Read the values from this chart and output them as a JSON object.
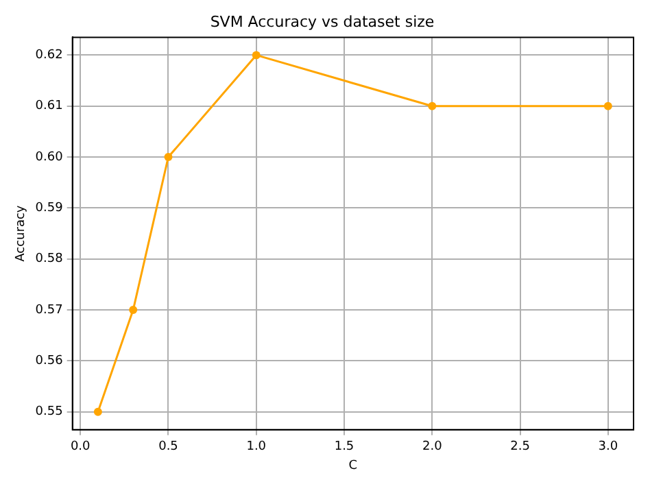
{
  "chart_data": {
    "type": "line",
    "title": "SVM Accuracy vs dataset size",
    "xlabel": "C",
    "ylabel": "Accuracy",
    "x": [
      0.1,
      0.3,
      0.5,
      1.0,
      2.0,
      3.0
    ],
    "series": [
      {
        "color": "#ffa500",
        "values": [
          0.55,
          0.57,
          0.6,
          0.62,
          0.61,
          0.61
        ]
      }
    ],
    "xlim": [
      -0.045,
      3.145
    ],
    "xticks": [
      {
        "value": 0,
        "label": "0.0"
      },
      {
        "value": 0.5,
        "label": "0.5"
      },
      {
        "value": 1,
        "label": "1.0"
      },
      {
        "value": 1.5,
        "label": "1.5"
      },
      {
        "value": 2,
        "label": "2.0"
      },
      {
        "value": 2.5,
        "label": "2.5"
      },
      {
        "value": 3,
        "label": "3.0"
      }
    ],
    "ylim": [
      0.5465,
      0.6235
    ],
    "yticks": [
      0.55,
      {
        "value": 0.56,
        "label": "0.56"
      },
      0.57,
      0.58,
      0.59,
      {
        "value": 0.6,
        "label": "0.60"
      },
      0.61,
      0.62
    ],
    "grid": true,
    "marker": "circle",
    "line_style": "solid",
    "legend": false
  }
}
